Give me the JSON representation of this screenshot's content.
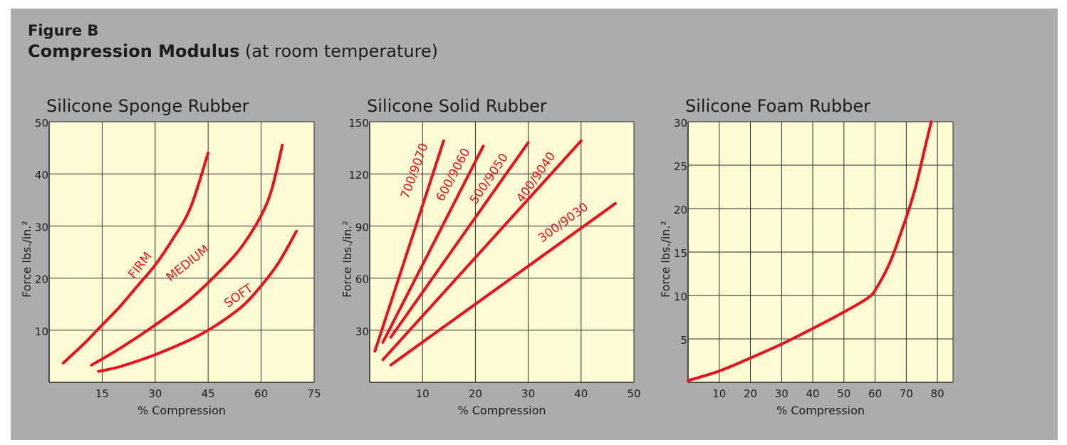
{
  "figure_label": "Figure B",
  "title_bold": "Compression Modulus",
  "title_rest": " (at room temperature)",
  "colors": {
    "panel_bg": "#acacac",
    "plot_bg": "#fdfbd3",
    "grid": "#2a2a2a",
    "curve": "#e8111d",
    "text": "#1d1d1d"
  },
  "chart_data": [
    {
      "type": "line",
      "title": "Silicone Sponge Rubber",
      "xlabel": "% Compression",
      "ylabel": "Force lbs./in.²",
      "xlim": [
        0,
        75
      ],
      "ylim": [
        0,
        50
      ],
      "x_gridlines": [
        15,
        30,
        45,
        60,
        75
      ],
      "y_gridlines": [
        10,
        20,
        30,
        40,
        50
      ],
      "x_tick_labels": [
        "15",
        "30",
        "45",
        "60",
        "75"
      ],
      "y_tick_labels": [
        "10",
        "20",
        "30",
        "40",
        "50"
      ],
      "grid": true,
      "series": [
        {
          "name": "FIRM",
          "x": [
            4,
            10,
            15,
            20,
            25,
            30,
            35,
            40,
            45
          ],
          "y": [
            3.7,
            7.5,
            11,
            14.5,
            18.5,
            22.5,
            27.5,
            33.5,
            44
          ]
        },
        {
          "name": "MEDIUM",
          "x": [
            12,
            20,
            30,
            40,
            50,
            55,
            60,
            63,
            66
          ],
          "y": [
            3.3,
            6.5,
            11,
            16,
            22.5,
            26.5,
            32,
            37,
            45.5
          ]
        },
        {
          "name": "SOFT",
          "x": [
            14,
            20,
            30,
            40,
            45,
            50,
            55,
            60,
            65,
            70
          ],
          "y": [
            2.1,
            3,
            5.3,
            8.2,
            10,
            12.2,
            14.8,
            18.5,
            23,
            29
          ]
        }
      ]
    },
    {
      "type": "line",
      "title": "Silicone Solid Rubber",
      "xlabel": "% Compression",
      "ylabel": "Force lbs./in.²",
      "xlim": [
        0,
        50
      ],
      "ylim": [
        0,
        150
      ],
      "x_gridlines": [
        10,
        20,
        30,
        40,
        50
      ],
      "y_gridlines": [
        30,
        60,
        90,
        120,
        150
      ],
      "x_tick_labels": [
        "10",
        "20",
        "30",
        "40",
        "50"
      ],
      "y_tick_labels": [
        "30",
        "60",
        "90",
        "120",
        "150"
      ],
      "grid": true,
      "series": [
        {
          "name": "700/9070",
          "x": [
            1,
            14
          ],
          "y": [
            18,
            139
          ]
        },
        {
          "name": "600/9060",
          "x": [
            2.5,
            21.5
          ],
          "y": [
            23,
            136
          ]
        },
        {
          "name": "500/9050",
          "x": [
            4,
            30
          ],
          "y": [
            26,
            138
          ]
        },
        {
          "name": "400/9040",
          "x": [
            2.5,
            40
          ],
          "y": [
            13,
            139
          ]
        },
        {
          "name": "300/9030",
          "x": [
            4,
            46.5
          ],
          "y": [
            10,
            103
          ]
        }
      ]
    },
    {
      "type": "line",
      "title": "Silicone Foam Rubber",
      "xlabel": "% Compression",
      "ylabel": "Force lbs./in.²",
      "xlim": [
        0,
        85
      ],
      "ylim": [
        0,
        30
      ],
      "x_gridlines": [
        10,
        20,
        30,
        40,
        50,
        60,
        70,
        80,
        85
      ],
      "y_gridlines": [
        5,
        10,
        15,
        20,
        25,
        30
      ],
      "x_tick_labels": [
        "10",
        "20",
        "30",
        "40",
        "50",
        "60",
        "70",
        "80"
      ],
      "y_tick_labels": [
        "5",
        "10",
        "15",
        "20",
        "25",
        "30"
      ],
      "grid": true,
      "series": [
        {
          "name": "",
          "x": [
            0,
            10,
            20,
            30,
            40,
            50,
            58,
            61,
            65,
            70,
            73,
            76,
            78
          ],
          "y": [
            0.2,
            1.3,
            2.8,
            4.4,
            6.2,
            8.1,
            9.8,
            11.2,
            14,
            19,
            22.5,
            27,
            30
          ]
        }
      ]
    }
  ]
}
